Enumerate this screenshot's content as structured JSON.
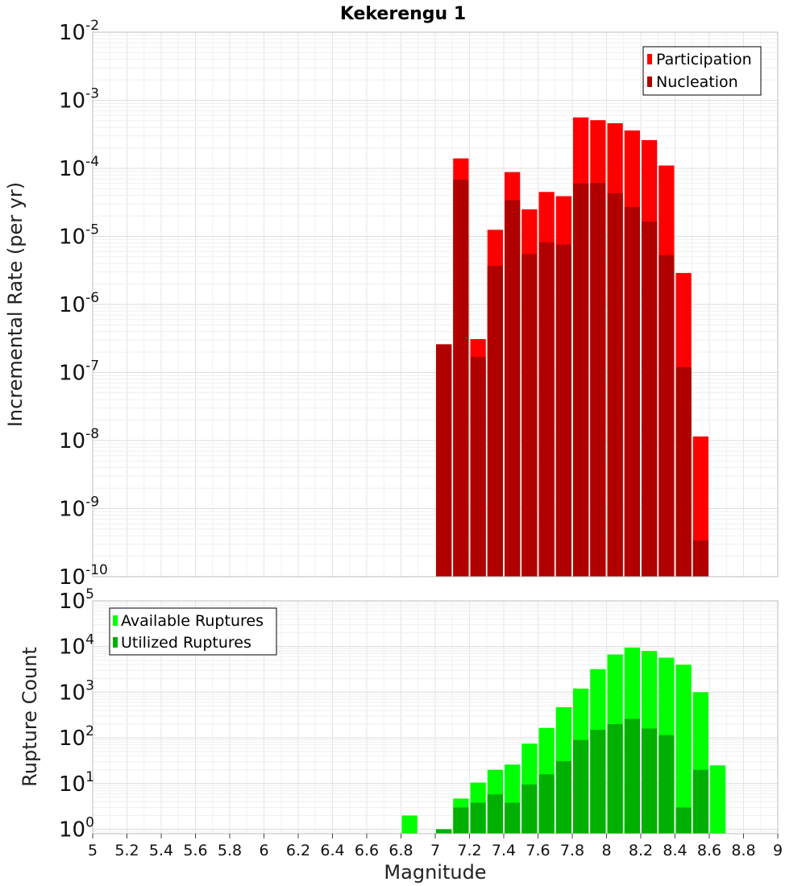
{
  "title": "Kekerengu 1",
  "chart_data": [
    {
      "type": "bar",
      "ylabel": "Incremental Rate (per yr)",
      "xlabel": "",
      "yscale": "log",
      "xlim": [
        5,
        9
      ],
      "ylim": [
        1e-10,
        0.01
      ],
      "grid": true,
      "legend_position": "top-right",
      "x": [
        7.0,
        7.1,
        7.2,
        7.3,
        7.4,
        7.5,
        7.6,
        7.7,
        7.8,
        7.9,
        8.0,
        8.1,
        8.2,
        8.3,
        8.4,
        8.5
      ],
      "series": [
        {
          "name": "Participation",
          "color": "#ff0000",
          "values": [
            2.6e-07,
            0.00014,
            3.1e-07,
            1.25e-05,
            8.8e-05,
            2.5e-05,
            4.5e-05,
            3.9e-05,
            0.00056,
            0.00051,
            0.00046,
            0.00036,
            0.00026,
            0.00011,
            2.9e-06,
            1.15e-08
          ]
        },
        {
          "name": "Nucleation",
          "color": "#b00000",
          "values": [
            2.6e-07,
            6.8e-05,
            1.7e-07,
            3.7e-06,
            3.4e-05,
            5.5e-06,
            8.2e-06,
            7.6e-06,
            6e-05,
            6.1e-05,
            4.3e-05,
            2.7e-05,
            1.65e-05,
            5.3e-06,
            1.2e-07,
            3.4e-10
          ]
        }
      ],
      "ytick_bases": [
        "10",
        "10",
        "10",
        "10",
        "10",
        "10",
        "10",
        "10",
        "10"
      ],
      "ytick_exps": [
        "-2",
        "-3",
        "-4",
        "-5",
        "-6",
        "-7",
        "-8",
        "-9",
        "-10"
      ]
    },
    {
      "type": "bar",
      "ylabel": "Rupture Count",
      "xlabel": "Magnitude",
      "yscale": "log",
      "xlim": [
        5,
        9
      ],
      "ylim": [
        0.8,
        100000
      ],
      "grid": true,
      "legend_position": "top-left",
      "x": [
        6.8,
        7.0,
        7.1,
        7.2,
        7.3,
        7.4,
        7.5,
        7.6,
        7.7,
        7.8,
        7.9,
        8.0,
        8.1,
        8.2,
        8.3,
        8.4,
        8.5,
        8.6
      ],
      "series": [
        {
          "name": "Available Ruptures",
          "color": "#00ff00",
          "values": [
            2,
            1,
            4.7,
            10.5,
            20,
            26,
            75,
            165,
            470,
            1200,
            3200,
            6700,
            9500,
            8000,
            5700,
            4000,
            1000,
            25
          ]
        },
        {
          "name": "Utilized Ruptures",
          "color": "#00b000",
          "values": [
            0,
            1,
            3,
            3.8,
            5.8,
            3.8,
            9.5,
            16,
            31,
            90,
            150,
            200,
            260,
            160,
            115,
            3,
            20,
            0
          ]
        }
      ],
      "ytick_bases": [
        "10",
        "10",
        "10",
        "10",
        "10",
        "10"
      ],
      "ytick_exps": [
        "0",
        "1",
        "2",
        "3",
        "4",
        "5"
      ],
      "xtick_labels": [
        "5",
        "5.2",
        "5.4",
        "5.6",
        "5.8",
        "6",
        "6.2",
        "6.4",
        "6.6",
        "6.8",
        "7",
        "7.2",
        "7.4",
        "7.6",
        "7.8",
        "8",
        "8.2",
        "8.4",
        "8.6",
        "8.8",
        "9"
      ]
    }
  ]
}
